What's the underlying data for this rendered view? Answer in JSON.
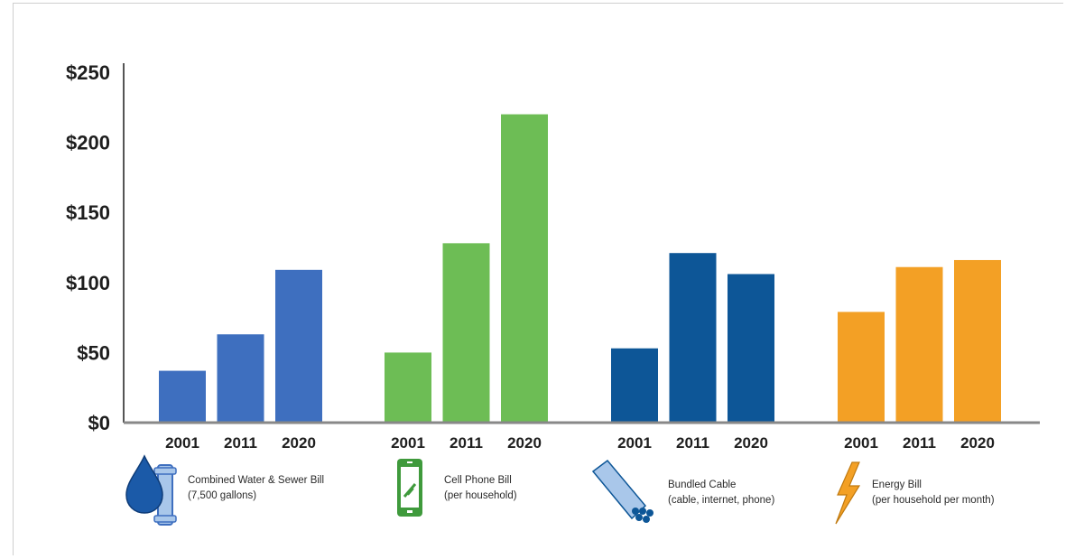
{
  "chart_data": {
    "type": "bar",
    "ylim": [
      0,
      250
    ],
    "yticks": [
      "$0",
      "$50",
      "$100",
      "$150",
      "$200",
      "$250"
    ],
    "grid": false,
    "groups": [
      {
        "key": "water",
        "color": "#3e6fbf",
        "label_line1": "Combined Water & Sewer Bill",
        "label_line2": "(7,500 gallons)",
        "icon": "water-drop-pipe-icon",
        "categories": [
          "2001",
          "2011",
          "2020"
        ],
        "values": [
          37,
          63,
          109
        ]
      },
      {
        "key": "cell",
        "color": "#6dbd55",
        "label_line1": "Cell Phone Bill",
        "label_line2": "(per household)",
        "icon": "cell-phone-icon",
        "categories": [
          "2001",
          "2011",
          "2020"
        ],
        "values": [
          50,
          128,
          220
        ]
      },
      {
        "key": "cable",
        "color": "#0d5697",
        "label_line1": "Bundled Cable",
        "label_line2": "(cable, internet, phone)",
        "icon": "cable-icon",
        "categories": [
          "2001",
          "2011",
          "2020"
        ],
        "values": [
          53,
          121,
          106
        ]
      },
      {
        "key": "energy",
        "color": "#f3a025",
        "label_line1": "Energy Bill",
        "label_line2": "(per household per month)",
        "icon": "lightning-bolt-icon",
        "categories": [
          "2001",
          "2011",
          "2020"
        ],
        "values": [
          79,
          111,
          116
        ]
      }
    ]
  }
}
